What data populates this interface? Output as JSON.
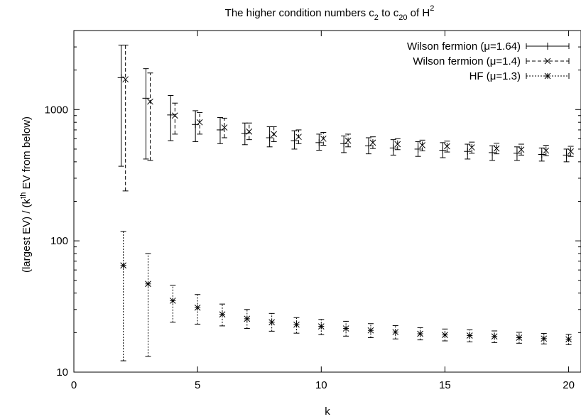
{
  "chart_data": {
    "type": "scatter",
    "title": {
      "main": "The higher condition numbers c",
      "sub1": "2",
      "mid1": " to c",
      "sub2": "20",
      "mid2": " of H",
      "sup": "2"
    },
    "xlabel": "k",
    "ylabel": {
      "pre": "(largest EV) / (k",
      "sup": "th",
      "post": " EV from below)"
    },
    "xlim": [
      0,
      20.5
    ],
    "ylim": [
      10,
      4000
    ],
    "yscale": "log",
    "xticks": [
      0,
      5,
      10,
      15,
      20
    ],
    "xtick_labels": [
      "0",
      "5",
      "10",
      "15",
      "20"
    ],
    "yticks": [
      10,
      100,
      1000
    ],
    "ytick_labels": [
      "10",
      "100",
      "1000"
    ],
    "grid": false,
    "legend_position": "top-right",
    "series": [
      {
        "name": "Wilson fermion (μ=1.64)",
        "marker": "+",
        "errorbar_style": "solid",
        "x": [
          2,
          3,
          4,
          5,
          6,
          7,
          8,
          9,
          10,
          11,
          12,
          13,
          14,
          15,
          16,
          17,
          18,
          19,
          20
        ],
        "y": [
          1750,
          1220,
          910,
          770,
          700,
          660,
          610,
          580,
          560,
          550,
          530,
          510,
          500,
          490,
          480,
          470,
          465,
          455,
          450
        ],
        "err_low": [
          370,
          420,
          580,
          570,
          550,
          540,
          520,
          500,
          490,
          470,
          460,
          450,
          440,
          430,
          420,
          410,
          410,
          405,
          400
        ],
        "err_high": [
          3100,
          2050,
          1280,
          980,
          870,
          790,
          740,
          690,
          650,
          630,
          610,
          590,
          570,
          560,
          545,
          530,
          520,
          510,
          500
        ]
      },
      {
        "name": "Wilson fermion (μ=1.4)",
        "marker": "x",
        "errorbar_style": "dashed",
        "x": [
          2,
          3,
          4,
          5,
          6,
          7,
          8,
          9,
          10,
          11,
          12,
          13,
          14,
          15,
          16,
          17,
          18,
          19,
          20
        ],
        "y": [
          1700,
          1150,
          900,
          800,
          730,
          680,
          650,
          620,
          600,
          580,
          560,
          545,
          535,
          525,
          515,
          505,
          495,
          487,
          480
        ],
        "err_low": [
          240,
          410,
          650,
          650,
          610,
          590,
          570,
          550,
          535,
          520,
          505,
          495,
          485,
          475,
          465,
          460,
          450,
          445,
          440
        ],
        "err_high": [
          3100,
          1900,
          1120,
          950,
          860,
          790,
          740,
          700,
          670,
          650,
          620,
          600,
          585,
          575,
          565,
          555,
          545,
          535,
          525
        ]
      },
      {
        "name": "HF (μ=1.3)",
        "marker": "*",
        "errorbar_style": "dotted",
        "x": [
          2,
          3,
          4,
          5,
          6,
          7,
          8,
          9,
          10,
          11,
          12,
          13,
          14,
          15,
          16,
          17,
          18,
          19,
          20
        ],
        "y": [
          65,
          47,
          35,
          31,
          27.5,
          25.5,
          24,
          23,
          22.3,
          21.5,
          20.8,
          20.2,
          19.6,
          19.2,
          19,
          18.7,
          18.3,
          18,
          17.8
        ],
        "err_low": [
          12.2,
          13.2,
          24,
          23.2,
          22.5,
          21.5,
          20.5,
          19.8,
          19.3,
          18.8,
          18.3,
          17.9,
          17.6,
          17.3,
          17,
          16.8,
          16.6,
          16.4,
          16.2
        ],
        "err_high": [
          118,
          80,
          46,
          39,
          33,
          30,
          28,
          26,
          25.2,
          24.4,
          23.4,
          22.6,
          21.8,
          21.3,
          21,
          20.6,
          20.1,
          19.7,
          19.4
        ]
      }
    ]
  }
}
